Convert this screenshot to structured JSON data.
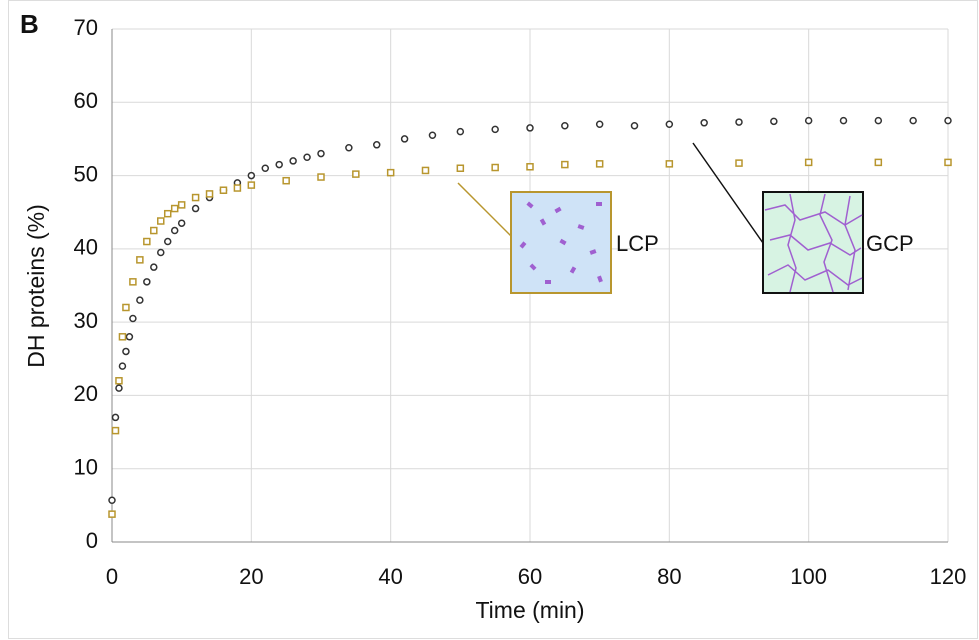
{
  "chart_data": {
    "type": "scatter",
    "panel_label": "B",
    "x_label": "Time (min)",
    "y_label": "DH proteins (%)",
    "xlim": [
      0,
      120
    ],
    "xticks": [
      0,
      20,
      40,
      60,
      80,
      100,
      120
    ],
    "ylim": [
      0,
      70
    ],
    "yticks": [
      0,
      10,
      20,
      30,
      40,
      50,
      60,
      70
    ],
    "grid": true,
    "series": [
      {
        "name": "GCP",
        "color": "#333333",
        "marker": "circle",
        "x": [
          0,
          0.5,
          1,
          1.5,
          2,
          2.5,
          3,
          4,
          5,
          6,
          7,
          8,
          9,
          10,
          12,
          14,
          16,
          18,
          20,
          22,
          24,
          26,
          28,
          30,
          34,
          38,
          42,
          46,
          50,
          55,
          60,
          65,
          70,
          75,
          80,
          85,
          90,
          95,
          100,
          105,
          110,
          115,
          120
        ],
        "values": [
          5.7,
          17,
          21,
          24,
          26,
          28,
          30.5,
          33,
          35.5,
          37.5,
          39.5,
          41,
          42.5,
          43.5,
          45.5,
          47,
          48,
          49,
          50,
          51,
          51.5,
          52,
          52.5,
          53,
          53.8,
          54.2,
          55,
          55.5,
          56,
          56.3,
          56.5,
          56.8,
          57,
          56.8,
          57,
          57.2,
          57.3,
          57.4,
          57.5,
          57.5,
          57.5,
          57.5,
          57.5
        ]
      },
      {
        "name": "LCP",
        "color": "#b8962e",
        "marker": "square",
        "x": [
          0,
          0.5,
          1,
          1.5,
          2,
          3,
          4,
          5,
          6,
          7,
          8,
          9,
          10,
          12,
          14,
          16,
          18,
          20,
          25,
          30,
          35,
          40,
          45,
          50,
          55,
          60,
          65,
          70,
          80,
          90,
          100,
          110,
          120
        ],
        "values": [
          3.8,
          15.2,
          22,
          28,
          32,
          35.5,
          38.5,
          41,
          42.5,
          43.8,
          44.8,
          45.5,
          46,
          47,
          47.5,
          48,
          48.3,
          48.7,
          49.3,
          49.8,
          50.2,
          50.4,
          50.7,
          51,
          51.1,
          51.2,
          51.5,
          51.6,
          51.6,
          51.7,
          51.8,
          51.8,
          51.8
        ]
      }
    ]
  }
}
